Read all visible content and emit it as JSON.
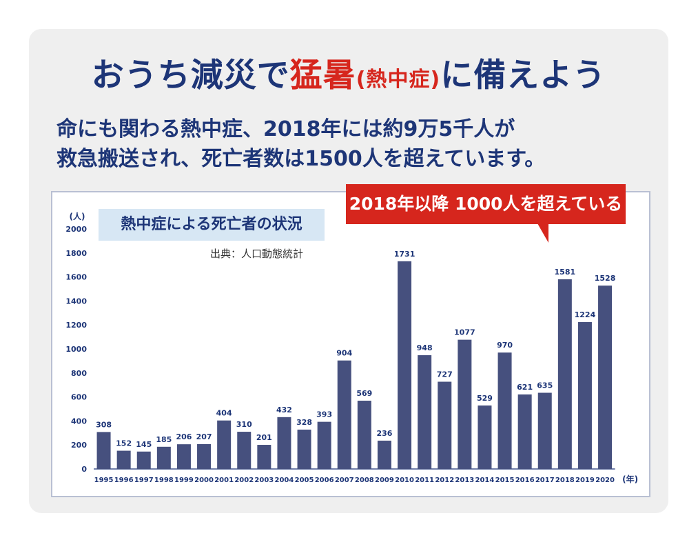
{
  "headline": {
    "part1": "おうち減災で",
    "part2": "猛暑",
    "part3": "(熱中症)",
    "part4": "に備えよう"
  },
  "lead": {
    "line1": "命にも関わる熱中症、2018年には約9万5千人が",
    "line2": "救急搬送され、死亡者数は1500人を超えています。"
  },
  "callout": "2018年以降 1000人を超えている",
  "chart_data": {
    "type": "bar",
    "title": "熱中症による死亡者の状況",
    "source": "出典：人口動態統計",
    "ylabel": "(人)",
    "xlabel": "(年)",
    "ylim": [
      0,
      2000
    ],
    "yticks": [
      0,
      200,
      400,
      600,
      800,
      1000,
      1200,
      1400,
      1600,
      1800,
      2000
    ],
    "categories": [
      "1995",
      "1996",
      "1997",
      "1998",
      "1999",
      "2000",
      "2001",
      "2002",
      "2003",
      "2004",
      "2005",
      "2006",
      "2007",
      "2008",
      "2009",
      "2010",
      "2011",
      "2012",
      "2013",
      "2014",
      "2015",
      "2016",
      "2017",
      "2018",
      "2019",
      "2020"
    ],
    "values": [
      308,
      152,
      145,
      185,
      206,
      207,
      404,
      310,
      201,
      432,
      328,
      393,
      904,
      569,
      236,
      1731,
      948,
      727,
      1077,
      529,
      970,
      621,
      635,
      1581,
      1224,
      1528
    ],
    "bar_color": "#46507e",
    "grid": false
  },
  "colors": {
    "navy": "#1d3577",
    "red": "#d6261d",
    "title_bg": "#d7e7f4",
    "panel": "#efefef"
  }
}
